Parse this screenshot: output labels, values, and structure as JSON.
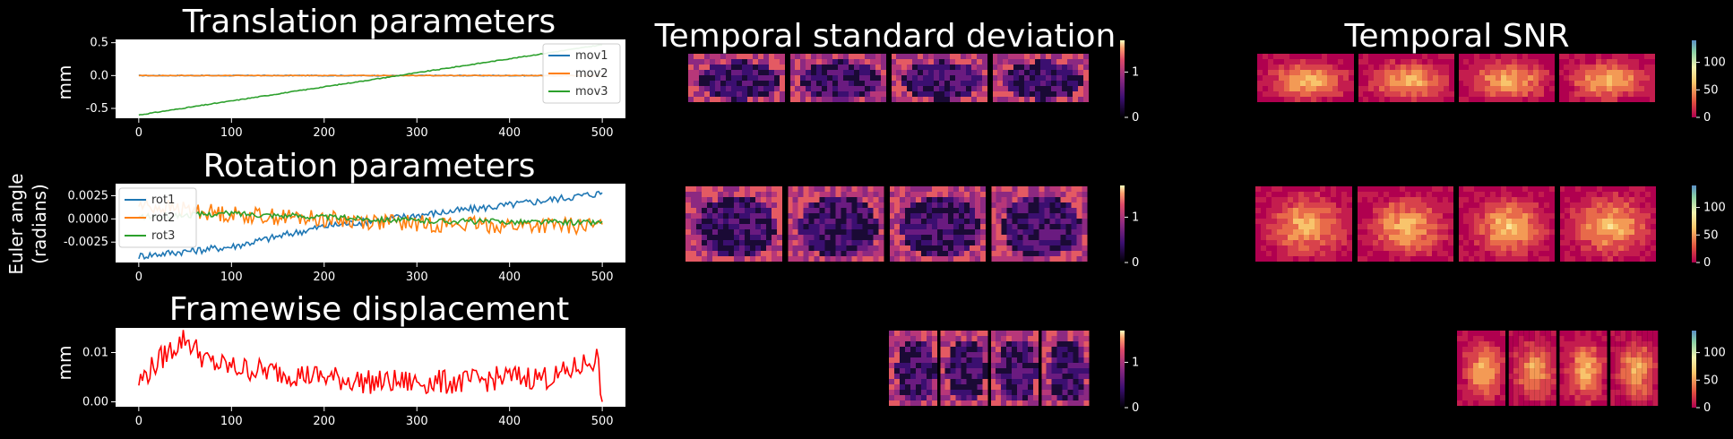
{
  "colors": {
    "background": "#000000",
    "plot_background": "#ffffff",
    "mov1": "#1f77b4",
    "mov2": "#ff7f0e",
    "mov3": "#2ca02c",
    "fd": "#ff0000"
  },
  "labels": {
    "y_mm": "mm",
    "euler": "Euler angle",
    "euler2": "(radians)"
  },
  "chart_data": [
    {
      "type": "line",
      "title": "Translation parameters",
      "ylabel": "mm",
      "xlim": [
        -25,
        525
      ],
      "ylim": [
        -0.65,
        0.55
      ],
      "xticks": [
        "0",
        "100",
        "200",
        "300",
        "400",
        "500"
      ],
      "yticks": [
        "0.5",
        "0.0",
        "-0.5"
      ],
      "yticks_values": [
        0.5,
        0.0,
        -0.5
      ],
      "legend": "right",
      "series": [
        {
          "name": "mov1",
          "color": "#1f77b4",
          "x": [
            0,
            500
          ],
          "y": [
            0.0,
            0.0
          ]
        },
        {
          "name": "mov2",
          "color": "#ff7f0e",
          "x": [
            0,
            500
          ],
          "y": [
            0.0,
            0.0
          ]
        },
        {
          "name": "mov3",
          "color": "#2ca02c",
          "x": [
            0,
            500
          ],
          "y": [
            -0.6,
            0.47
          ]
        }
      ]
    },
    {
      "type": "line",
      "title": "Rotation parameters",
      "ylabel": "Euler angle (radians)",
      "xlim": [
        -25,
        525
      ],
      "ylim": [
        -0.0047,
        0.0038
      ],
      "xticks": [
        "0",
        "100",
        "200",
        "300",
        "400",
        "500"
      ],
      "yticks": [
        "0.0025",
        "0.0000",
        "-0.0025"
      ],
      "yticks_values": [
        0.0025,
        0.0,
        -0.0025
      ],
      "legend": "left",
      "series": [
        {
          "name": "rot1",
          "color": "#1f77b4",
          "x": [
            0,
            100,
            200,
            300,
            400,
            500
          ],
          "y": [
            -0.004,
            -0.003,
            -0.0008,
            0.0004,
            0.0015,
            0.0028
          ]
        },
        {
          "name": "rot2",
          "color": "#ff7f0e",
          "x": [
            0,
            100,
            200,
            300,
            400,
            500
          ],
          "y": [
            0.0015,
            0.0005,
            0.0,
            -0.0005,
            -0.0007,
            -0.0008
          ]
        },
        {
          "name": "rot3",
          "color": "#2ca02c",
          "x": [
            0,
            100,
            200,
            300,
            400,
            500
          ],
          "y": [
            0.0002,
            0.0006,
            0.0002,
            -0.0002,
            -0.0003,
            -0.0004
          ]
        }
      ]
    },
    {
      "type": "line",
      "title": "Framewise displacement",
      "ylabel": "mm",
      "xlim": [
        -25,
        525
      ],
      "ylim": [
        -0.001,
        0.015
      ],
      "xticks": [
        "0",
        "100",
        "200",
        "300",
        "400",
        "500"
      ],
      "yticks": [
        "0.01",
        "0.00"
      ],
      "yticks_values": [
        0.01,
        0.0
      ],
      "series": [
        {
          "name": "",
          "color": "#ff0000",
          "x": [
            0,
            25,
            50,
            75,
            100,
            150,
            200,
            250,
            300,
            350,
            400,
            450,
            495,
            500
          ],
          "y": [
            0.004,
            0.009,
            0.013,
            0.008,
            0.007,
            0.006,
            0.005,
            0.004,
            0.004,
            0.004,
            0.005,
            0.005,
            0.009,
            0.0
          ]
        }
      ]
    },
    {
      "type": "heatmap",
      "title": "Temporal standard deviation",
      "colorbar_ticks": [
        "0",
        "1"
      ],
      "colormap": "magma",
      "rows": 3
    },
    {
      "type": "heatmap",
      "title": "Temporal SNR",
      "colorbar_ticks_rows": [
        [
          "0",
          "50",
          "100"
        ],
        [
          "0",
          "50",
          "100"
        ],
        [
          "0",
          "50",
          "100"
        ]
      ],
      "colormap": "spectral-like",
      "rows": 3
    }
  ]
}
